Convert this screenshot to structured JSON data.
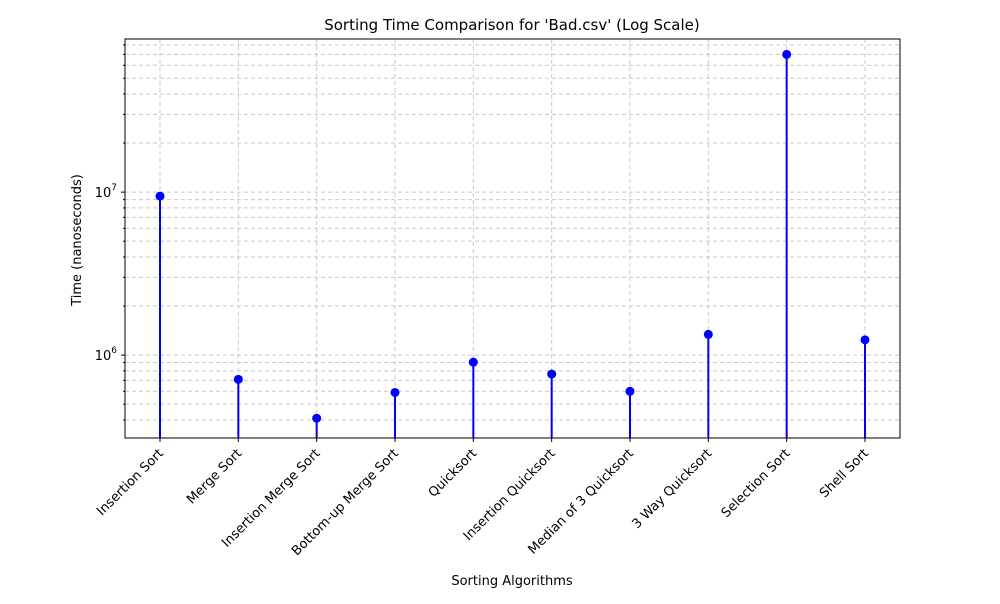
{
  "chart_data": {
    "type": "stem",
    "title": "Sorting Time Comparison for 'Bad.csv' (Log Scale)",
    "xlabel": "Sorting Algorithms",
    "ylabel": "Time (nanoseconds)",
    "yscale": "log",
    "ylim": [
      310000,
      87000000
    ],
    "yticks": [
      {
        "value": 1000000,
        "label_base": "10",
        "label_exp": "6"
      },
      {
        "value": 10000000,
        "label_base": "10",
        "label_exp": "7"
      }
    ],
    "grid": true,
    "legend": "none",
    "categories": [
      "Insertion Sort",
      "Merge Sort",
      "Insertion Merge Sort",
      "Bottom-up Merge Sort",
      "Quicksort",
      "Insertion Quicksort",
      "Median of 3 Quicksort",
      "3 Way Quicksort",
      "Selection Sort",
      "Shell Sort"
    ],
    "values": [
      9450000,
      710000,
      410000,
      590000,
      905000,
      765000,
      600000,
      1340000,
      70000000,
      1240000
    ],
    "colors": {
      "stem": "#0000ff",
      "marker": "#0000ff",
      "grid": "#c8c8c8",
      "axis": "#000000"
    }
  }
}
